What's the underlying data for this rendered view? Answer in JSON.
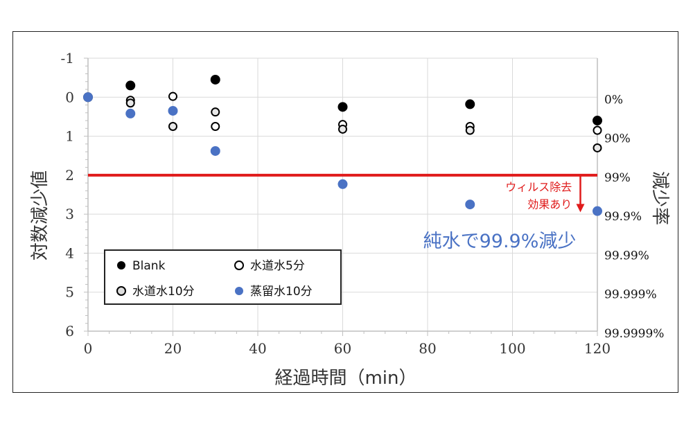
{
  "chart_data": {
    "type": "scatter",
    "xlabel": "経過時間（min）",
    "ylabel": "対数減少値",
    "y2label": "減少率",
    "xlim": [
      0,
      120
    ],
    "ylim": [
      -1,
      6
    ],
    "y_inverted": true,
    "x_ticks": [
      "0",
      "20",
      "40",
      "60",
      "80",
      "100",
      "120"
    ],
    "y_ticks": [
      "-1",
      "0",
      "1",
      "2",
      "3",
      "4",
      "5",
      "6"
    ],
    "y2_ticks": [
      {
        "value": 0,
        "label": "0%"
      },
      {
        "value": 1,
        "label": "90%"
      },
      {
        "value": 2,
        "label": "99%"
      },
      {
        "value": 3,
        "label": "99.9%"
      },
      {
        "value": 4,
        "label": "99.99%"
      },
      {
        "value": 5,
        "label": "99.999%"
      },
      {
        "value": 6,
        "label": "99.9999%"
      }
    ],
    "grid": true,
    "series": [
      {
        "name": "Blank",
        "marker": "filled-black",
        "points": [
          [
            0,
            0
          ],
          [
            10,
            -0.3
          ],
          [
            30,
            -0.45
          ],
          [
            60,
            0.25
          ],
          [
            90,
            0.18
          ],
          [
            120,
            0.6
          ]
        ]
      },
      {
        "name": "水道水5分",
        "marker": "open-circle",
        "points": [
          [
            0,
            0
          ],
          [
            10,
            0.08
          ],
          [
            20,
            -0.02
          ],
          [
            30,
            0.75
          ],
          [
            60,
            0.7
          ],
          [
            90,
            0.75
          ],
          [
            120,
            0.85
          ]
        ]
      },
      {
        "name": "水道水10分",
        "marker": "open-circle-double",
        "points": [
          [
            0,
            0
          ],
          [
            10,
            0.15
          ],
          [
            20,
            0.75
          ],
          [
            30,
            0.38
          ],
          [
            60,
            0.82
          ],
          [
            90,
            0.85
          ],
          [
            120,
            1.3
          ]
        ]
      },
      {
        "name": "蒸留水10分",
        "marker": "filled-blue",
        "points": [
          [
            0,
            0
          ],
          [
            10,
            0.42
          ],
          [
            20,
            0.35
          ],
          [
            30,
            1.38
          ],
          [
            60,
            2.23
          ],
          [
            90,
            2.75
          ],
          [
            120,
            2.92
          ]
        ]
      }
    ],
    "reference_line": {
      "y": 2,
      "color": "#e01b1b"
    },
    "annotations": {
      "arrow_note": [
        "ウィルス除去",
        "効果あり"
      ],
      "highlight": "純水で99.9%減少"
    },
    "colors": {
      "blue": "#4a72c4",
      "red": "#e01b1b",
      "black": "#000000"
    }
  }
}
